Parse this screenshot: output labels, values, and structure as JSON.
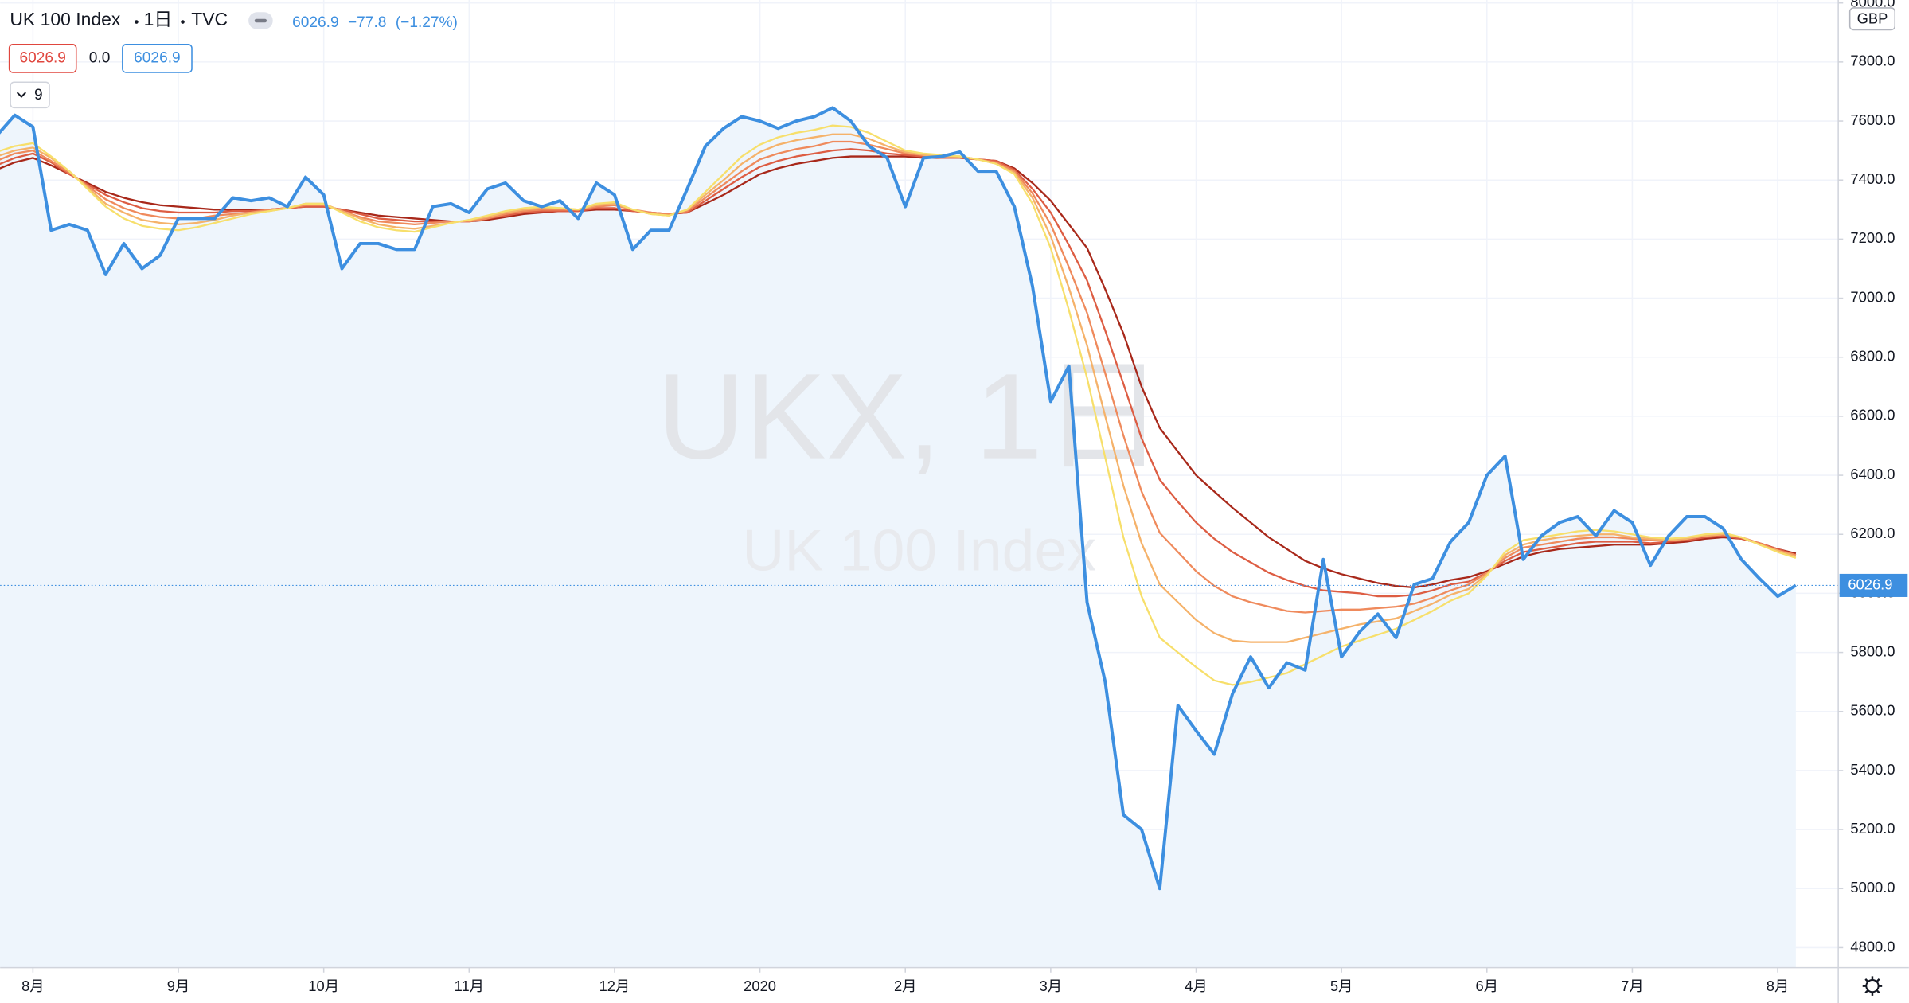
{
  "header": {
    "symbol": "UK 100 Index",
    "interval": "1日",
    "exchange": "TVC",
    "last": "6026.9",
    "change": "−77.8",
    "change_pct": "(−1.27%)"
  },
  "indicator": {
    "input_1": "6026.9",
    "input_2": "0.0",
    "input_3": "6026.9",
    "length": "9"
  },
  "watermark": {
    "ticker": "UKX, 1日",
    "description": "UK 100 Index"
  },
  "currency": "GBP",
  "chart_data": {
    "type": "line",
    "categories": [
      null,
      null,
      "8月",
      null,
      null,
      null,
      null,
      null,
      null,
      null,
      "9月",
      null,
      null,
      null,
      null,
      null,
      null,
      null,
      "10月",
      null,
      null,
      null,
      null,
      null,
      null,
      null,
      "11月",
      null,
      null,
      null,
      null,
      null,
      null,
      null,
      "12月",
      null,
      null,
      null,
      null,
      null,
      null,
      null,
      "2020",
      null,
      null,
      null,
      null,
      null,
      null,
      null,
      "2月",
      null,
      null,
      null,
      null,
      null,
      null,
      null,
      "3月",
      null,
      null,
      null,
      null,
      null,
      null,
      null,
      "4月",
      null,
      null,
      null,
      null,
      null,
      null,
      null,
      "5月",
      null,
      null,
      null,
      null,
      null,
      null,
      null,
      "6月",
      null,
      null,
      null,
      null,
      null,
      null,
      null,
      "7月",
      null,
      null,
      null,
      null,
      null,
      null,
      null,
      "8月",
      null
    ],
    "ylim": [
      4732,
      8010
    ],
    "yticks": [
      {
        "value": 4800,
        "label": "4800.0"
      },
      {
        "value": 5000,
        "label": "5000.0"
      },
      {
        "value": 5200,
        "label": "5200.0"
      },
      {
        "value": 5400,
        "label": "5400.0"
      },
      {
        "value": 5600,
        "label": "5600.0"
      },
      {
        "value": 5800,
        "label": "5800.0"
      },
      {
        "value": 6000,
        "label": "6000.0"
      },
      {
        "value": 6200,
        "label": "6200.0"
      },
      {
        "value": 6400,
        "label": "6400.0"
      },
      {
        "value": 6600,
        "label": "6600.0"
      },
      {
        "value": 6800,
        "label": "6800.0"
      },
      {
        "value": 7000,
        "label": "7000.0"
      },
      {
        "value": 7200,
        "label": "7200.0"
      },
      {
        "value": 7400,
        "label": "7400.0"
      },
      {
        "value": 7600,
        "label": "7600.0"
      },
      {
        "value": 7800,
        "label": "7800.0"
      },
      {
        "value": 8000,
        "label": "8000.0"
      }
    ],
    "grid": true,
    "series": [
      {
        "color": "#a8281a",
        "values": [
          7435,
          7460,
          7475,
          7450,
          7420,
          7390,
          7360,
          7340,
          7325,
          7315,
          7310,
          7305,
          7300,
          7300,
          7300,
          7300,
          7305,
          7310,
          7310,
          7300,
          7290,
          7280,
          7275,
          7270,
          7265,
          7260,
          7260,
          7265,
          7275,
          7285,
          7290,
          7295,
          7295,
          7300,
          7300,
          7295,
          7290,
          7285,
          7290,
          7320,
          7350,
          7385,
          7420,
          7440,
          7455,
          7465,
          7475,
          7480,
          7480,
          7480,
          7480,
          7475,
          7475,
          7475,
          7470,
          7465,
          7440,
          7390,
          7330,
          7250,
          7170,
          7030,
          6880,
          6700,
          6560,
          6480,
          6400,
          6345,
          6290,
          6240,
          6190,
          6150,
          6110,
          6085,
          6065,
          6050,
          6035,
          6025,
          6020,
          6030,
          6045,
          6055,
          6075,
          6100,
          6125,
          6140,
          6150,
          6155,
          6160,
          6165,
          6165,
          6165,
          6170,
          6175,
          6185,
          6190,
          6185,
          6170,
          6150,
          6135
        ]
      },
      {
        "color": "#dd5d43",
        "values": [
          7450,
          7475,
          7490,
          7460,
          7420,
          7385,
          7350,
          7325,
          7305,
          7295,
          7290,
          7290,
          7290,
          7295,
          7295,
          7300,
          7305,
          7310,
          7310,
          7300,
          7285,
          7270,
          7265,
          7260,
          7260,
          7260,
          7260,
          7270,
          7280,
          7290,
          7295,
          7295,
          7295,
          7305,
          7305,
          7295,
          7290,
          7285,
          7290,
          7330,
          7370,
          7410,
          7445,
          7465,
          7480,
          7490,
          7500,
          7505,
          7500,
          7490,
          7485,
          7480,
          7475,
          7475,
          7470,
          7465,
          7435,
          7370,
          7290,
          7180,
          7060,
          6890,
          6710,
          6525,
          6385,
          6310,
          6240,
          6185,
          6140,
          6105,
          6070,
          6045,
          6025,
          6010,
          6005,
          6000,
          5990,
          5990,
          5995,
          6010,
          6030,
          6040,
          6070,
          6110,
          6140,
          6150,
          6160,
          6170,
          6175,
          6175,
          6175,
          6170,
          6175,
          6180,
          6190,
          6195,
          6185,
          6170,
          6150,
          6130
        ]
      },
      {
        "color": "#ef8a5c",
        "values": [
          7465,
          7490,
          7500,
          7465,
          7425,
          7380,
          7335,
          7305,
          7285,
          7275,
          7270,
          7270,
          7280,
          7285,
          7290,
          7300,
          7305,
          7315,
          7315,
          7295,
          7275,
          7260,
          7255,
          7250,
          7255,
          7260,
          7260,
          7270,
          7285,
          7295,
          7300,
          7300,
          7300,
          7310,
          7315,
          7300,
          7290,
          7285,
          7295,
          7340,
          7385,
          7430,
          7470,
          7490,
          7505,
          7515,
          7530,
          7530,
          7520,
          7505,
          7490,
          7485,
          7480,
          7480,
          7470,
          7460,
          7430,
          7355,
          7250,
          7105,
          6950,
          6745,
          6535,
          6345,
          6205,
          6140,
          6075,
          6025,
          5990,
          5970,
          5955,
          5940,
          5935,
          5940,
          5945,
          5945,
          5950,
          5955,
          5965,
          5985,
          6010,
          6030,
          6070,
          6120,
          6155,
          6165,
          6175,
          6185,
          6190,
          6190,
          6185,
          6180,
          6180,
          6185,
          6195,
          6200,
          6190,
          6170,
          6145,
          6130
        ]
      },
      {
        "color": "#f5b26a",
        "values": [
          7480,
          7500,
          7510,
          7475,
          7430,
          7375,
          7320,
          7290,
          7265,
          7255,
          7250,
          7255,
          7265,
          7280,
          7290,
          7295,
          7305,
          7320,
          7320,
          7295,
          7270,
          7250,
          7240,
          7235,
          7245,
          7255,
          7265,
          7275,
          7290,
          7300,
          7305,
          7305,
          7300,
          7315,
          7320,
          7300,
          7285,
          7280,
          7300,
          7350,
          7400,
          7455,
          7495,
          7520,
          7535,
          7545,
          7555,
          7555,
          7540,
          7515,
          7495,
          7485,
          7480,
          7480,
          7470,
          7455,
          7425,
          7340,
          7210,
          7035,
          6840,
          6600,
          6365,
          6170,
          6030,
          5970,
          5910,
          5865,
          5840,
          5835,
          5835,
          5835,
          5850,
          5865,
          5880,
          5895,
          5905,
          5915,
          5940,
          5965,
          5995,
          6015,
          6065,
          6130,
          6165,
          6180,
          6190,
          6195,
          6200,
          6200,
          6190,
          6185,
          6180,
          6185,
          6195,
          6200,
          6190,
          6165,
          6145,
          6125
        ]
      },
      {
        "color": "#f7df6b",
        "values": [
          7495,
          7515,
          7525,
          7480,
          7430,
          7370,
          7310,
          7270,
          7245,
          7235,
          7230,
          7240,
          7255,
          7270,
          7285,
          7295,
          7305,
          7320,
          7320,
          7290,
          7260,
          7240,
          7230,
          7225,
          7240,
          7255,
          7265,
          7280,
          7295,
          7305,
          7310,
          7305,
          7300,
          7320,
          7325,
          7300,
          7285,
          7280,
          7300,
          7360,
          7420,
          7480,
          7520,
          7545,
          7560,
          7570,
          7585,
          7580,
          7560,
          7530,
          7500,
          7490,
          7485,
          7480,
          7470,
          7455,
          7420,
          7320,
          7170,
          6960,
          6730,
          6460,
          6190,
          5990,
          5850,
          5800,
          5750,
          5705,
          5690,
          5700,
          5715,
          5730,
          5760,
          5790,
          5820,
          5840,
          5860,
          5880,
          5910,
          5940,
          5975,
          6000,
          6060,
          6140,
          6180,
          6190,
          6200,
          6210,
          6215,
          6210,
          6200,
          6190,
          6185,
          6190,
          6200,
          6205,
          6190,
          6165,
          6140,
          6120
        ]
      },
      {
        "color": "#3d8fe0",
        "area_color": "#eef5fc",
        "values": [
          7550,
          7620,
          7580,
          7230,
          7250,
          7230,
          7080,
          7185,
          7100,
          7145,
          7270,
          7270,
          7270,
          7340,
          7330,
          7340,
          7310,
          7410,
          7350,
          7100,
          7185,
          7185,
          7165,
          7165,
          7310,
          7320,
          7290,
          7370,
          7390,
          7330,
          7310,
          7330,
          7270,
          7390,
          7350,
          7165,
          7230,
          7230,
          7370,
          7515,
          7575,
          7615,
          7600,
          7575,
          7600,
          7615,
          7645,
          7600,
          7515,
          7475,
          7310,
          7475,
          7480,
          7495,
          7430,
          7430,
          7310,
          7040,
          6650,
          6770,
          5970,
          5700,
          5250,
          5200,
          5000,
          5620,
          5535,
          5455,
          5660,
          5785,
          5680,
          5765,
          5740,
          6115,
          5785,
          5870,
          5930,
          5850,
          6030,
          6050,
          6175,
          6240,
          6400,
          6465,
          6115,
          6195,
          6240,
          6260,
          6195,
          6280,
          6240,
          6095,
          6195,
          6260,
          6260,
          6220,
          6115,
          6050,
          5990,
          6026.9
        ]
      }
    ]
  }
}
